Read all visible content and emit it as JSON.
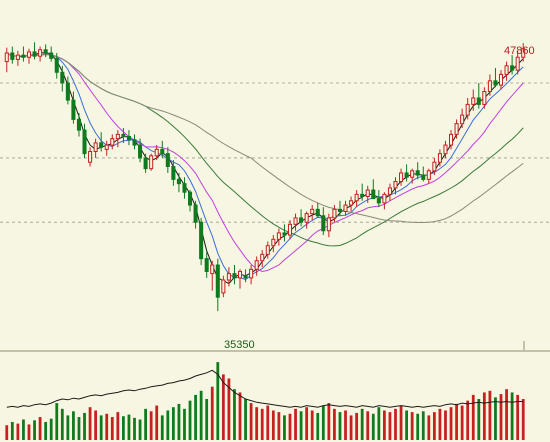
{
  "chart_data": {
    "type": "candlestick",
    "price_panel": {
      "max_label": "47860",
      "min_label": "35350",
      "ylim": [
        34000,
        49500
      ],
      "gridlines": [
        46000,
        42500,
        39500
      ],
      "candles": [
        {
          "o": 47000,
          "h": 47650,
          "l": 46500,
          "c": 47400
        },
        {
          "o": 47400,
          "h": 47700,
          "l": 46900,
          "c": 47100
        },
        {
          "o": 47100,
          "h": 47500,
          "l": 46800,
          "c": 47300
        },
        {
          "o": 47300,
          "h": 47700,
          "l": 47000,
          "c": 47200
        },
        {
          "o": 47200,
          "h": 47600,
          "l": 46900,
          "c": 47450
        },
        {
          "o": 47450,
          "h": 47900,
          "l": 47100,
          "c": 47250
        },
        {
          "o": 47250,
          "h": 47700,
          "l": 47000,
          "c": 47550
        },
        {
          "o": 47550,
          "h": 47800,
          "l": 47200,
          "c": 47400
        },
        {
          "o": 47400,
          "h": 47700,
          "l": 47000,
          "c": 47150
        },
        {
          "o": 47150,
          "h": 47400,
          "l": 46200,
          "c": 46500
        },
        {
          "o": 46500,
          "h": 46800,
          "l": 45600,
          "c": 46000
        },
        {
          "o": 46000,
          "h": 46300,
          "l": 45000,
          "c": 45200
        },
        {
          "o": 45200,
          "h": 45600,
          "l": 44100,
          "c": 44300
        },
        {
          "o": 44300,
          "h": 44600,
          "l": 43500,
          "c": 43800
        },
        {
          "o": 43800,
          "h": 44100,
          "l": 42500,
          "c": 42700
        },
        {
          "o": 42300,
          "h": 43000,
          "l": 42100,
          "c": 42800
        },
        {
          "o": 42800,
          "h": 43400,
          "l": 42500,
          "c": 43200
        },
        {
          "o": 43200,
          "h": 43700,
          "l": 42800,
          "c": 43000
        },
        {
          "o": 42900,
          "h": 43300,
          "l": 42600,
          "c": 43100
        },
        {
          "o": 43100,
          "h": 43600,
          "l": 42900,
          "c": 43400
        },
        {
          "o": 43400,
          "h": 43800,
          "l": 43000,
          "c": 43600
        },
        {
          "o": 43600,
          "h": 43900,
          "l": 43200,
          "c": 43500
        },
        {
          "o": 43500,
          "h": 43800,
          "l": 43100,
          "c": 43350
        },
        {
          "o": 43350,
          "h": 43600,
          "l": 42900,
          "c": 43100
        },
        {
          "o": 43100,
          "h": 43400,
          "l": 42300,
          "c": 42500
        },
        {
          "o": 42500,
          "h": 42700,
          "l": 41800,
          "c": 42000
        },
        {
          "o": 42000,
          "h": 42700,
          "l": 41900,
          "c": 42600
        },
        {
          "o": 42600,
          "h": 43100,
          "l": 42400,
          "c": 42900
        },
        {
          "o": 42900,
          "h": 43300,
          "l": 42500,
          "c": 42700
        },
        {
          "o": 42700,
          "h": 43000,
          "l": 41800,
          "c": 42100
        },
        {
          "o": 42100,
          "h": 42400,
          "l": 41200,
          "c": 41500
        },
        {
          "o": 41500,
          "h": 41800,
          "l": 40900,
          "c": 41300
        },
        {
          "o": 41300,
          "h": 41600,
          "l": 40600,
          "c": 40900
        },
        {
          "o": 40900,
          "h": 41000,
          "l": 40000,
          "c": 40300
        },
        {
          "o": 40300,
          "h": 40500,
          "l": 39200,
          "c": 39500
        },
        {
          "o": 39500,
          "h": 39700,
          "l": 37500,
          "c": 37800
        },
        {
          "o": 37800,
          "h": 38100,
          "l": 36900,
          "c": 37200
        },
        {
          "o": 37100,
          "h": 37700,
          "l": 36300,
          "c": 37500
        },
        {
          "o": 37500,
          "h": 37800,
          "l": 35350,
          "c": 36000
        },
        {
          "o": 36200,
          "h": 37000,
          "l": 36000,
          "c": 36800
        },
        {
          "o": 36800,
          "h": 37400,
          "l": 36500,
          "c": 37100
        },
        {
          "o": 37100,
          "h": 37500,
          "l": 36600,
          "c": 36900
        },
        {
          "o": 36900,
          "h": 37300,
          "l": 36400,
          "c": 37200
        },
        {
          "o": 37000,
          "h": 37300,
          "l": 36700,
          "c": 36900
        },
        {
          "o": 36900,
          "h": 37500,
          "l": 36600,
          "c": 37300
        },
        {
          "o": 37300,
          "h": 37900,
          "l": 37000,
          "c": 37700
        },
        {
          "o": 37700,
          "h": 38200,
          "l": 37400,
          "c": 38000
        },
        {
          "o": 38000,
          "h": 38600,
          "l": 37800,
          "c": 38400
        },
        {
          "o": 38400,
          "h": 38900,
          "l": 38100,
          "c": 38700
        },
        {
          "o": 38700,
          "h": 39200,
          "l": 38400,
          "c": 39000
        },
        {
          "o": 39000,
          "h": 39400,
          "l": 38600,
          "c": 38900
        },
        {
          "o": 38900,
          "h": 39600,
          "l": 38700,
          "c": 39400
        },
        {
          "o": 39400,
          "h": 39900,
          "l": 39100,
          "c": 39700
        },
        {
          "o": 39700,
          "h": 40100,
          "l": 39300,
          "c": 39500
        },
        {
          "o": 39500,
          "h": 40000,
          "l": 39200,
          "c": 39900
        },
        {
          "o": 39900,
          "h": 40300,
          "l": 39600,
          "c": 40100
        },
        {
          "o": 40100,
          "h": 40400,
          "l": 39700,
          "c": 39800
        },
        {
          "o": 39800,
          "h": 40200,
          "l": 38900,
          "c": 39100
        },
        {
          "o": 39100,
          "h": 39900,
          "l": 38800,
          "c": 39700
        },
        {
          "o": 39700,
          "h": 40300,
          "l": 39500,
          "c": 40100
        },
        {
          "o": 40100,
          "h": 40500,
          "l": 39800,
          "c": 40000
        },
        {
          "o": 40000,
          "h": 40500,
          "l": 39800,
          "c": 40300
        },
        {
          "o": 40300,
          "h": 40700,
          "l": 40000,
          "c": 40500
        },
        {
          "o": 40500,
          "h": 41000,
          "l": 40200,
          "c": 40800
        },
        {
          "o": 40800,
          "h": 41300,
          "l": 40500,
          "c": 40700
        },
        {
          "o": 40700,
          "h": 41200,
          "l": 40400,
          "c": 41000
        },
        {
          "o": 41000,
          "h": 41500,
          "l": 40700,
          "c": 40600
        },
        {
          "o": 40600,
          "h": 41000,
          "l": 40200,
          "c": 40400
        },
        {
          "o": 40400,
          "h": 40900,
          "l": 40100,
          "c": 40800
        },
        {
          "o": 40800,
          "h": 41300,
          "l": 40500,
          "c": 41100
        },
        {
          "o": 41100,
          "h": 41600,
          "l": 40800,
          "c": 41400
        },
        {
          "o": 41400,
          "h": 42000,
          "l": 41200,
          "c": 41800
        },
        {
          "o": 41800,
          "h": 42200,
          "l": 41400,
          "c": 41600
        },
        {
          "o": 41600,
          "h": 42000,
          "l": 41300,
          "c": 41900
        },
        {
          "o": 41900,
          "h": 42300,
          "l": 41500,
          "c": 41700
        },
        {
          "o": 41700,
          "h": 42100,
          "l": 41400,
          "c": 41500
        },
        {
          "o": 41500,
          "h": 42000,
          "l": 41300,
          "c": 41900
        },
        {
          "o": 41900,
          "h": 42500,
          "l": 41700,
          "c": 42300
        },
        {
          "o": 42300,
          "h": 42900,
          "l": 42100,
          "c": 42700
        },
        {
          "o": 42700,
          "h": 43300,
          "l": 42500,
          "c": 43100
        },
        {
          "o": 43100,
          "h": 43800,
          "l": 42900,
          "c": 43600
        },
        {
          "o": 43600,
          "h": 44300,
          "l": 43400,
          "c": 44100
        },
        {
          "o": 44100,
          "h": 44800,
          "l": 43900,
          "c": 44500
        },
        {
          "o": 44500,
          "h": 45300,
          "l": 44300,
          "c": 45000
        },
        {
          "o": 45000,
          "h": 45700,
          "l": 44700,
          "c": 45300
        },
        {
          "o": 45300,
          "h": 46000,
          "l": 44800,
          "c": 45000
        },
        {
          "o": 45000,
          "h": 45800,
          "l": 44800,
          "c": 45600
        },
        {
          "o": 45600,
          "h": 46400,
          "l": 45400,
          "c": 46100
        },
        {
          "o": 46100,
          "h": 46700,
          "l": 45800,
          "c": 45900
        },
        {
          "o": 45900,
          "h": 46600,
          "l": 45700,
          "c": 46400
        },
        {
          "o": 46400,
          "h": 47000,
          "l": 46100,
          "c": 46800
        },
        {
          "o": 46800,
          "h": 47300,
          "l": 46400,
          "c": 46600
        },
        {
          "o": 46600,
          "h": 47500,
          "l": 46400,
          "c": 47200
        },
        {
          "o": 47200,
          "h": 47860,
          "l": 47000,
          "c": 47600
        }
      ]
    },
    "volume_panel": {
      "ylim": [
        0,
        100
      ],
      "values": [
        18,
        22,
        20,
        25,
        19,
        24,
        28,
        22,
        26,
        45,
        38,
        30,
        35,
        28,
        33,
        40,
        36,
        30,
        32,
        28,
        34,
        29,
        31,
        27,
        25,
        38,
        35,
        42,
        30,
        36,
        40,
        44,
        38,
        48,
        55,
        60,
        50,
        65,
        95,
        80,
        75,
        62,
        58,
        50,
        45,
        40,
        38,
        42,
        36,
        34,
        30,
        32,
        38,
        35,
        40,
        36,
        33,
        42,
        45,
        38,
        34,
        36,
        30,
        33,
        38,
        35,
        32,
        40,
        36,
        34,
        38,
        42,
        36,
        34,
        32,
        35,
        30,
        34,
        38,
        36,
        40,
        44,
        42,
        48,
        55,
        50,
        58,
        60,
        52,
        56,
        62,
        58,
        55,
        50
      ],
      "line": [
        40,
        41,
        40,
        42,
        41,
        43,
        44,
        43,
        45,
        48,
        50,
        49,
        51,
        50,
        52,
        54,
        55,
        54,
        56,
        57,
        58,
        60,
        61,
        60,
        62,
        63,
        65,
        66,
        67,
        69,
        70,
        72,
        73,
        75,
        78,
        80,
        82,
        85,
        80,
        70,
        64,
        58,
        54,
        50,
        48,
        46,
        45,
        44,
        43,
        42,
        41,
        40,
        41,
        40,
        42,
        41,
        40,
        42,
        43,
        42,
        41,
        42,
        41,
        40,
        42,
        41,
        40,
        42,
        41,
        40,
        41,
        42,
        41,
        40,
        41,
        40,
        41,
        42,
        41,
        43,
        44,
        43,
        45,
        44,
        45,
        46,
        45,
        46,
        47,
        46,
        47,
        46,
        47,
        47
      ]
    }
  }
}
